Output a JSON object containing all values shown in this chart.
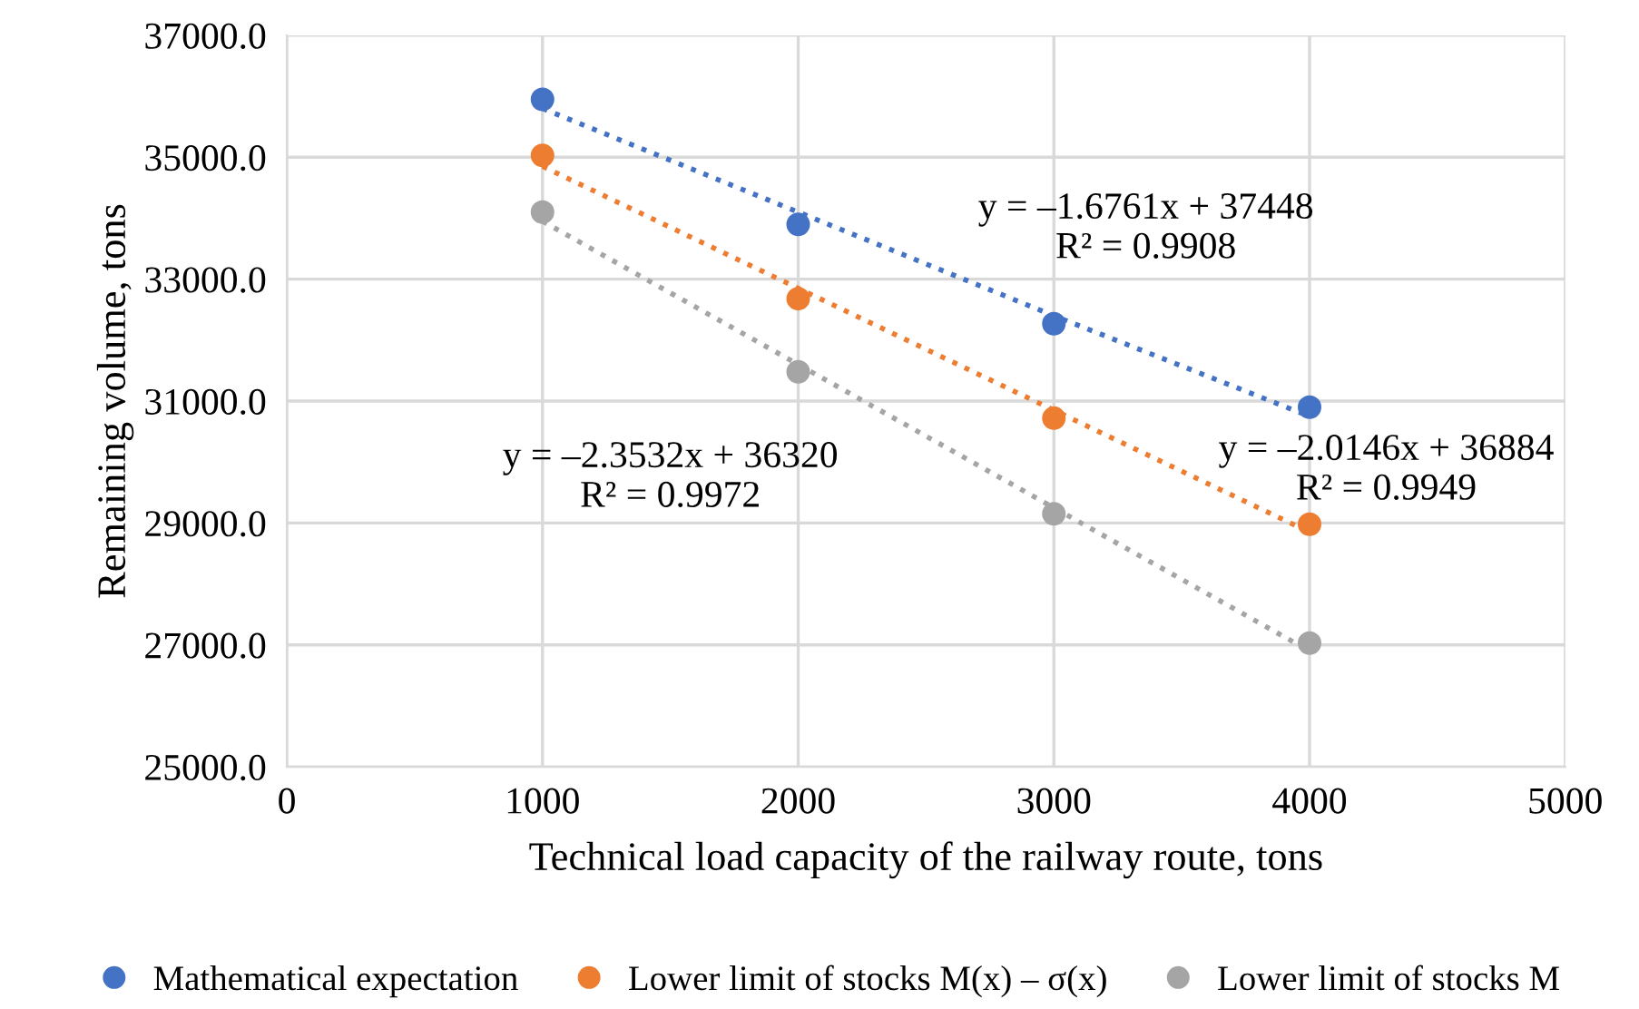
{
  "chart_data": {
    "type": "scatter",
    "xlabel": "Technical load capacity of the railway route, tons",
    "ylabel": "Remaining volume, tons",
    "x": [
      1000,
      2000,
      3000,
      4000
    ],
    "series": [
      {
        "name": "Mathematical expectation",
        "color": "#4472c4",
        "values": [
          35950,
          33900,
          32270,
          30900
        ]
      },
      {
        "name": "Lower limit of stocks M(x) – σ(x)",
        "color": "#ed7d31",
        "values": [
          35030,
          32680,
          30720,
          28980
        ]
      },
      {
        "name": "Lower limit of stocks M",
        "color": "#a5a5a5",
        "values": [
          34100,
          31480,
          29150,
          27030
        ]
      },
      {
        "type": "line",
        "color": "#4472c4",
        "values": [
          35800,
          34100,
          32400,
          30750
        ],
        "line_style": "dotted",
        "marker": "none"
      },
      {
        "type": "line",
        "color": "#ed7d31",
        "values": [
          34850,
          32850,
          30850,
          28850
        ],
        "line_style": "dotted",
        "marker": "none"
      },
      {
        "type": "line",
        "color": "#a5a5a5",
        "values": [
          33950,
          31600,
          29250,
          26900
        ],
        "line_style": "dotted",
        "marker": "none"
      }
    ],
    "marker": "circle",
    "annotations": [
      "y = –1.6761x + 37448\nR² = 0.9908",
      "y = –2.0146x + 36884\nR² = 0.9949",
      "y = –2.3532x + 36320\nR² = 0.9972"
    ],
    "xlim": [
      0,
      5000
    ],
    "xticks": [
      0,
      1000,
      2000,
      3000,
      4000,
      5000
    ],
    "ylim": [
      25000,
      37000
    ],
    "yticks": [
      {
        "value": 25000,
        "label": "25000.0"
      },
      {
        "value": 27000,
        "label": "27000.0"
      },
      {
        "value": 29000,
        "label": "29000.0"
      },
      {
        "value": 31000,
        "label": "31000.0"
      },
      {
        "value": 33000,
        "label": "33000.0"
      },
      {
        "value": 35000,
        "label": "35000.0"
      },
      {
        "value": 37000,
        "label": "37000.0"
      }
    ],
    "grid": true,
    "legend": "bottom"
  }
}
